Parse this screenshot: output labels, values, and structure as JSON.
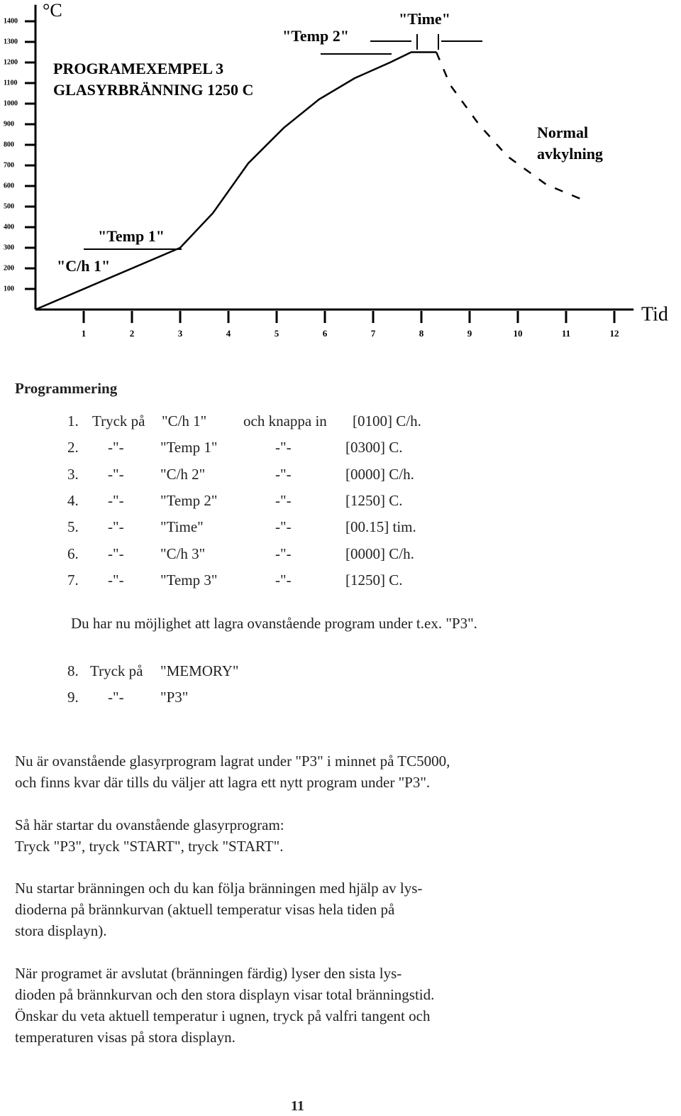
{
  "chart_data": {
    "type": "line",
    "title": "PROGRAMEXEMPEL 3",
    "subtitle": "GLASYRBRÄNNING 1250 C",
    "y_label": "°C",
    "x_label": "Tid",
    "xlim": [
      0,
      12.4
    ],
    "xticks": [
      1,
      2,
      3,
      4,
      5,
      6,
      7,
      8,
      9,
      10,
      11,
      12
    ],
    "ylim": [
      0,
      1480
    ],
    "yticks": [
      100,
      200,
      300,
      400,
      500,
      600,
      700,
      800,
      900,
      1000,
      1100,
      1200,
      1300,
      1400
    ],
    "series": [
      {
        "color": "#000000",
        "dashed": false,
        "x": [
          0,
          3,
          3.68,
          4.41,
          5.15,
          5.88,
          6.62,
          7.35,
          7.79,
          8.31
        ],
        "values": [
          0,
          300,
          469,
          710,
          883,
          1021,
          1124,
          1200,
          1250,
          1250
        ]
      },
      {
        "color": "#000000",
        "dashed": true,
        "x": [
          8.31,
          8.6,
          9.19,
          9.78,
          10.59,
          11.47
        ],
        "values": [
          1250,
          1090,
          900,
          745,
          607,
          521
        ]
      }
    ],
    "annotations": [
      "\"Temp 2\"",
      "\"Time\"",
      "Normal",
      "avkylning",
      "\"Temp 1\"",
      "\"C/h 1\""
    ]
  },
  "document": {
    "heading": "Programmering",
    "steps": [
      [
        "1.",
        "Tryck på",
        "\"C/h 1\"",
        "och knappa in",
        "[0100] C/h."
      ],
      [
        "2.",
        "-\"-",
        "\"Temp 1\"",
        "-\"-",
        "[0300] C."
      ],
      [
        "3.",
        "-\"-",
        "\"C/h 2\"",
        "-\"-",
        "[0000] C/h."
      ],
      [
        "4.",
        "-\"-",
        "\"Temp 2\"",
        "-\"-",
        "[1250] C."
      ],
      [
        "5.",
        "-\"-",
        "\"Time\"",
        "-\"-",
        "[00.15] tim."
      ],
      [
        "6.",
        "-\"-",
        "\"C/h 3\"",
        "-\"-",
        "[0000] C/h."
      ],
      [
        "7.",
        "-\"-",
        "\"Temp 3\"",
        "-\"-",
        "[1250] C."
      ]
    ],
    "note": "Du har nu möjlighet att lagra ovanstående program under t.ex. \"P3\".",
    "steps2": [
      [
        "8.",
        "Tryck på",
        "\"MEMORY\""
      ],
      [
        "9.",
        "-\"-",
        "\"P3\""
      ]
    ],
    "paragraphs": [
      [
        "Nu är ovanstående glasyrprogram lagrat under \"P3\" i minnet på TC5000,",
        "och finns kvar där tills du väljer att lagra ett nytt program under \"P3\"."
      ],
      [
        "Så här startar du ovanstående glasyrprogram:",
        "Tryck  \"P3\", tryck  \"START\", tryck  \"START\"."
      ],
      [
        "Nu startar bränningen och du kan följa bränningen med hjälp av lys-",
        "dioderna på brännkurvan (aktuell temperatur visas hela tiden på",
        "stora displayn)."
      ],
      [
        "När programet är avslutat (bränningen färdig) lyser den sista lys-",
        "dioden på brännkurvan och den stora displayn visar total bränningstid.",
        "Önskar du veta aktuell temperatur i ugnen, tryck på valfri tangent och",
        "temperaturen visas på stora displayn."
      ]
    ],
    "page_number": "11"
  }
}
